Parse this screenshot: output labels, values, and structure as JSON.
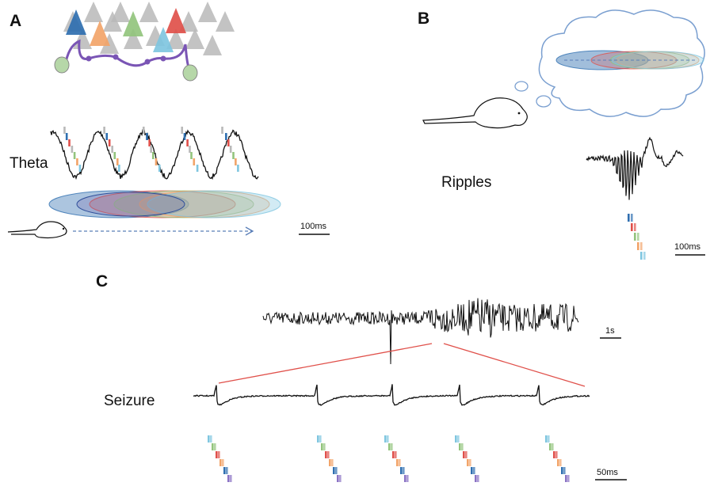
{
  "colors": {
    "blue": "#2f6fb0",
    "orange": "#f2a469",
    "green": "#93c47d",
    "red": "#e0504a",
    "lightblue": "#7fc6e0",
    "purple": "#8a72c4",
    "gray": "#b9b9b9",
    "interneuron": "#7a55b5",
    "soma": "#b6d7a8",
    "cloud": "#7a9fd0",
    "zoom": "#e0504a"
  },
  "panels": {
    "a": {
      "letter": "A",
      "label": "Theta",
      "scale": "100ms"
    },
    "b": {
      "letter": "B",
      "label": "Ripples",
      "scale": "100ms"
    },
    "c": {
      "letter": "C",
      "label": "Seizure",
      "scale_top": "1s",
      "scale_bottom": "50ms"
    }
  }
}
